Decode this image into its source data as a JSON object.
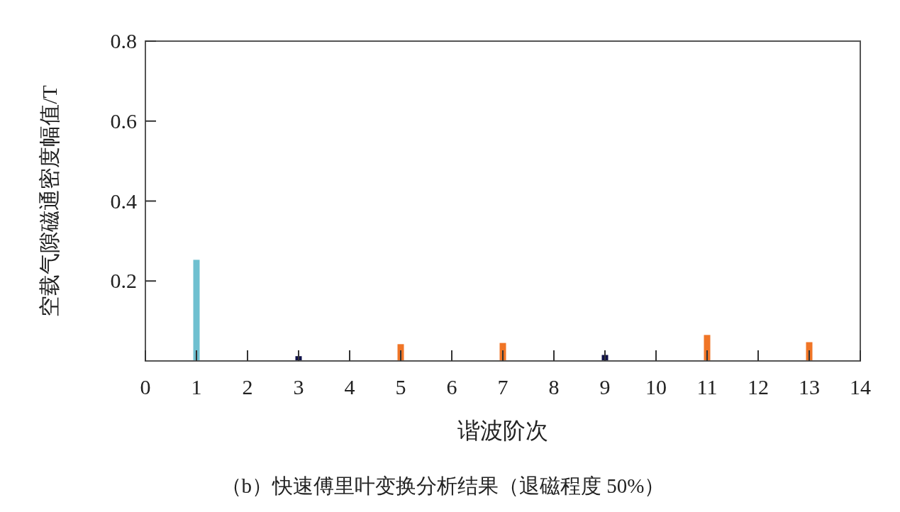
{
  "chart_data": {
    "type": "bar",
    "xlabel": "谐波阶次",
    "ylabel": "空载气隙磁通密度幅值/T",
    "x": [
      1,
      3,
      5,
      7,
      9,
      11,
      13
    ],
    "values": [
      0.253,
      0.012,
      0.042,
      0.045,
      0.015,
      0.065,
      0.047
    ],
    "colors": [
      "#6fc0d0",
      "#10124a",
      "#f07526",
      "#f07526",
      "#10124a",
      "#f07526",
      "#f07526"
    ],
    "xlim": [
      0,
      14
    ],
    "xticks": [
      0,
      1,
      2,
      3,
      4,
      5,
      6,
      7,
      8,
      9,
      10,
      11,
      12,
      13,
      14
    ],
    "ylim": [
      0,
      0.8
    ],
    "yticks": [
      0.2,
      0.4,
      0.6,
      0.8
    ],
    "grid": false,
    "annotations": [
      "（b）快速傅里叶变换分析结果（退磁程度 50%）"
    ]
  }
}
